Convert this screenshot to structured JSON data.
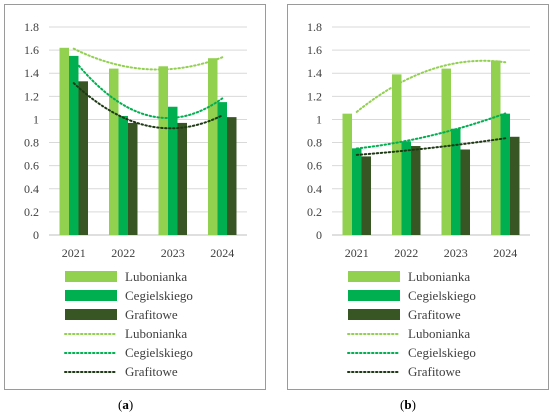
{
  "colors": {
    "lubonianka": "#92d050",
    "cegielskiego": "#00b050",
    "grafitowe": "#375623",
    "gridline": "#d9d9d9",
    "axis": "#bfbfbf"
  },
  "legend": {
    "bars": [
      "Lubonianka",
      "Cegielskiego",
      "Grafitowe"
    ],
    "trends": [
      "Lubonianka",
      "Cegielskiego",
      "Grafitowe"
    ]
  },
  "chart_data": [
    {
      "type": "bar",
      "panel": "a",
      "caption_open": "(",
      "caption_letter": "a",
      "caption_close": ")",
      "categories": [
        "2021",
        "2022",
        "2023",
        "2024"
      ],
      "ylim": [
        0,
        1.8
      ],
      "yticks": [
        "0",
        "0.2",
        "0.4",
        "0.6",
        "0.8",
        "1",
        "1.2",
        "1.4",
        "1.6",
        "1.8"
      ],
      "grid": true,
      "legend_position": "bottom",
      "trendline": "polynomial (order 2), dotted",
      "series": [
        {
          "name": "Lubonianka",
          "values": [
            1.62,
            1.44,
            1.46,
            1.53
          ]
        },
        {
          "name": "Cegielskiego",
          "values": [
            1.55,
            1.03,
            1.11,
            1.15
          ]
        },
        {
          "name": "Grafitowe",
          "values": [
            1.33,
            0.97,
            0.97,
            1.02
          ]
        }
      ]
    },
    {
      "type": "bar",
      "panel": "b",
      "caption_open": "(",
      "caption_letter": "b",
      "caption_close": ")",
      "categories": [
        "2021",
        "2022",
        "2023",
        "2024"
      ],
      "ylim": [
        0,
        1.8
      ],
      "yticks": [
        "0",
        "0.2",
        "0.4",
        "0.6",
        "0.8",
        "1",
        "1.2",
        "1.4",
        "1.6",
        "1.8"
      ],
      "grid": true,
      "legend_position": "bottom",
      "trendline": "polynomial (order 2), dotted",
      "series": [
        {
          "name": "Lubonianka",
          "values": [
            1.05,
            1.39,
            1.44,
            1.51
          ]
        },
        {
          "name": "Cegielskiego",
          "values": [
            0.75,
            0.81,
            0.92,
            1.05
          ]
        },
        {
          "name": "Grafitowe",
          "values": [
            0.68,
            0.77,
            0.74,
            0.85
          ]
        }
      ]
    }
  ]
}
